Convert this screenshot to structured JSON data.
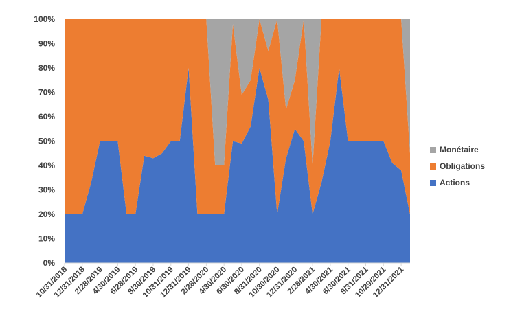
{
  "chart_data": {
    "type": "area",
    "stacked": "percent",
    "y_ticks": [
      "0%",
      "10%",
      "20%",
      "30%",
      "40%",
      "50%",
      "60%",
      "70%",
      "80%",
      "90%",
      "100%"
    ],
    "ylim": [
      0,
      100
    ],
    "x_tick_labels": [
      "10/31/2018",
      "12/31/2018",
      "2/28/2019",
      "4/30/2019",
      "6/28/2019",
      "8/30/2019",
      "10/31/2019",
      "12/31/2019",
      "2/28/2020",
      "4/30/2020",
      "6/30/2020",
      "8/31/2020",
      "10/30/2020",
      "12/31/2020",
      "2/26/2021",
      "4/30/2021",
      "6/30/2021",
      "8/31/2021",
      "10/29/2021",
      "12/31/2021"
    ],
    "x": [
      "10/31/2018",
      "11/30/2018",
      "12/31/2018",
      "1/31/2019",
      "2/28/2019",
      "3/29/2019",
      "4/30/2019",
      "5/31/2019",
      "6/28/2019",
      "7/31/2019",
      "8/30/2019",
      "9/30/2019",
      "10/31/2019",
      "11/29/2019",
      "12/31/2019",
      "1/31/2020",
      "2/28/2020",
      "3/31/2020",
      "4/30/2020",
      "5/29/2020",
      "6/30/2020",
      "7/31/2020",
      "8/31/2020",
      "9/30/2020",
      "10/30/2020",
      "11/30/2020",
      "12/31/2020",
      "1/29/2021",
      "2/26/2021",
      "3/31/2021",
      "4/30/2021",
      "5/31/2021",
      "6/30/2021",
      "7/30/2021",
      "8/31/2021",
      "9/30/2021",
      "10/29/2021",
      "11/30/2021",
      "12/31/2021",
      "1/31/2022"
    ],
    "series": [
      {
        "name": "Actions",
        "color": "#4472C4",
        "values": [
          20,
          20,
          20,
          33,
          50,
          50,
          50,
          20,
          20,
          44,
          43,
          45,
          50,
          50,
          80,
          20,
          20,
          20,
          20,
          50,
          49,
          56,
          80,
          67,
          20,
          43,
          55,
          50,
          20,
          33,
          50,
          80,
          50,
          50,
          50,
          50,
          50,
          41,
          38,
          20
        ]
      },
      {
        "name": "Obligations",
        "color": "#ED7D31",
        "values": [
          80,
          80,
          80,
          67,
          50,
          50,
          50,
          80,
          80,
          56,
          57,
          55,
          50,
          50,
          20,
          80,
          80,
          20,
          20,
          48,
          20,
          19,
          20,
          20,
          80,
          20,
          20,
          50,
          20,
          67,
          50,
          20,
          50,
          50,
          50,
          50,
          50,
          59,
          62,
          25
        ]
      },
      {
        "name": "Monétaire",
        "color": "#A5A5A5",
        "values": [
          0,
          0,
          0,
          0,
          0,
          0,
          0,
          0,
          0,
          0,
          0,
          0,
          0,
          0,
          0,
          0,
          0,
          60,
          60,
          2,
          31,
          25,
          0,
          13,
          0,
          37,
          25,
          0,
          60,
          0,
          0,
          0,
          0,
          0,
          0,
          0,
          0,
          0,
          0,
          55
        ]
      }
    ],
    "legend": {
      "position": "right",
      "order": [
        "Monétaire",
        "Obligations",
        "Actions"
      ]
    },
    "grid": false
  }
}
